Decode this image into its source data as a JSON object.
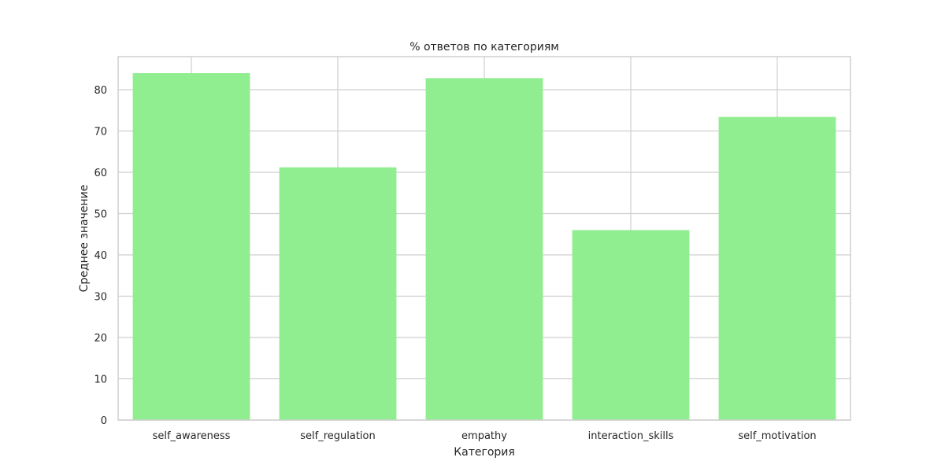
{
  "chart_data": {
    "type": "bar",
    "title": "% ответов по категориям",
    "xlabel": "Категория",
    "ylabel": "Среднее значение",
    "categories": [
      "self_awareness",
      "self_regulation",
      "empathy",
      "interaction_skills",
      "self_motivation"
    ],
    "values": [
      84,
      61.2,
      82.8,
      46,
      73.4
    ],
    "ylim": [
      0,
      88
    ],
    "yticks": [
      0,
      10,
      20,
      30,
      40,
      50,
      60,
      70,
      80
    ],
    "grid": true,
    "bar_color": "#90ee90",
    "grid_color": "#cfcfcf",
    "legend": "none"
  }
}
